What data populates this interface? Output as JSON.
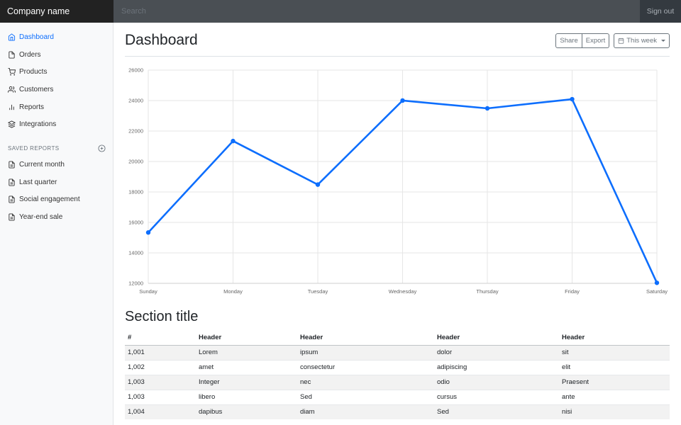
{
  "topbar": {
    "brand": "Company name",
    "search_placeholder": "Search",
    "signout": "Sign out"
  },
  "sidebar": {
    "items": [
      {
        "label": "Dashboard",
        "icon": "home-icon",
        "active": true
      },
      {
        "label": "Orders",
        "icon": "file-icon"
      },
      {
        "label": "Products",
        "icon": "shopping-cart-icon"
      },
      {
        "label": "Customers",
        "icon": "users-icon"
      },
      {
        "label": "Reports",
        "icon": "bar-chart-icon"
      },
      {
        "label": "Integrations",
        "icon": "layers-icon"
      }
    ],
    "saved_heading": "SAVED REPORTS",
    "saved": [
      {
        "label": "Current month",
        "icon": "file-text-icon"
      },
      {
        "label": "Last quarter",
        "icon": "file-text-icon"
      },
      {
        "label": "Social engagement",
        "icon": "file-text-icon"
      },
      {
        "label": "Year-end sale",
        "icon": "file-text-icon"
      }
    ]
  },
  "main": {
    "title": "Dashboard",
    "share_label": "Share",
    "export_label": "Export",
    "range_label": "This week",
    "section_title": "Section title"
  },
  "chart_data": {
    "type": "line",
    "categories": [
      "Sunday",
      "Monday",
      "Tuesday",
      "Wednesday",
      "Thursday",
      "Friday",
      "Saturday"
    ],
    "values": [
      15339,
      21345,
      18483,
      24003,
      23489,
      24092,
      12034
    ],
    "y_ticks": [
      "12000",
      "14000",
      "16000",
      "18000",
      "20000",
      "22000",
      "24000",
      "26000"
    ],
    "ylim": [
      12000,
      26000
    ],
    "color": "#0d6efd",
    "grid": true
  },
  "table": {
    "headers": [
      "#",
      "Header",
      "Header",
      "Header",
      "Header"
    ],
    "rows": [
      [
        "1,001",
        "Lorem",
        "ipsum",
        "dolor",
        "sit"
      ],
      [
        "1,002",
        "amet",
        "consectetur",
        "adipiscing",
        "elit"
      ],
      [
        "1,003",
        "Integer",
        "nec",
        "odio",
        "Praesent"
      ],
      [
        "1,003",
        "libero",
        "Sed",
        "cursus",
        "ante"
      ],
      [
        "1,004",
        "dapibus",
        "diam",
        "Sed",
        "nisi"
      ]
    ]
  }
}
